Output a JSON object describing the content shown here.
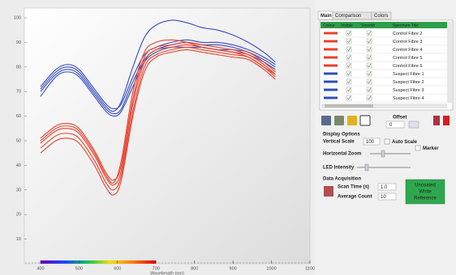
{
  "tabs": [
    "Main",
    "Comparison",
    "Colors"
  ],
  "plot": {
    "xlabel": "Wavelength (nm)",
    "xlim": [
      358,
      1100
    ],
    "ylim": [
      0,
      100
    ],
    "xticks": [
      400,
      500,
      600,
      700,
      800,
      900,
      1000,
      1100
    ],
    "yticks": [
      10,
      20,
      30,
      40,
      50,
      60,
      70,
      80,
      90,
      100
    ],
    "x": [
      400,
      440,
      470,
      500,
      540,
      570,
      590,
      610,
      640,
      670,
      700,
      740,
      780,
      820,
      860,
      900,
      940,
      980,
      1010
    ],
    "series": [
      {
        "color": "#3a4cc0",
        "values": [
          72,
          79,
          81,
          79,
          71,
          65,
          63,
          65,
          76,
          85,
          88,
          90,
          91,
          90,
          90,
          89,
          87,
          84,
          81
        ]
      },
      {
        "color": "#3a4cc0",
        "values": [
          70,
          77,
          79,
          77,
          69,
          63,
          61,
          63,
          74,
          83,
          87,
          89,
          90,
          89,
          89,
          88,
          86,
          83,
          80
        ]
      },
      {
        "color": "#3a4cc0",
        "values": [
          68,
          76,
          78,
          76,
          68,
          62,
          60,
          62,
          72,
          82,
          86,
          88,
          88,
          88,
          87,
          87,
          85,
          82,
          79
        ]
      },
      {
        "color": "#3a4cc0",
        "values": [
          71,
          78,
          80,
          78,
          70,
          64,
          62,
          66,
          80,
          92,
          97,
          99,
          98,
          96,
          95,
          93,
          90,
          86,
          82
        ]
      },
      {
        "color": "#e8412c",
        "values": [
          51,
          56,
          57,
          55,
          46,
          37,
          34,
          40,
          67,
          84,
          88,
          89,
          90,
          89,
          88,
          87,
          86,
          82,
          78
        ]
      },
      {
        "color": "#e8412c",
        "values": [
          49,
          54,
          55,
          53,
          44,
          35,
          32,
          38,
          65,
          82,
          87,
          88,
          89,
          88,
          87,
          86,
          85,
          81,
          77
        ]
      },
      {
        "color": "#e8412c",
        "values": [
          47,
          52,
          53,
          51,
          42,
          33,
          30,
          36,
          62,
          80,
          85,
          87,
          88,
          87,
          86,
          85,
          84,
          80,
          76
        ]
      },
      {
        "color": "#e8412c",
        "values": [
          45,
          50,
          51,
          49,
          40,
          31,
          28,
          34,
          60,
          78,
          84,
          86,
          87,
          86,
          85,
          84,
          83,
          79,
          75
        ]
      },
      {
        "color": "#e8412c",
        "values": [
          50,
          55,
          56,
          54,
          45,
          36,
          33,
          42,
          70,
          86,
          90,
          91,
          90,
          88,
          87,
          86,
          84,
          80,
          77
        ]
      }
    ]
  },
  "spectra_table": {
    "columns": [
      "Colour",
      "Visible",
      "Smooth",
      "Spectrum Title"
    ],
    "rows": [
      {
        "color": "#e8412c",
        "title": "Control Fibre 2"
      },
      {
        "color": "#e8412c",
        "title": "Control Fibre 3"
      },
      {
        "color": "#e8412c",
        "title": "Control Fibre 4"
      },
      {
        "color": "#e8412c",
        "title": "Control Fibre 5"
      },
      {
        "color": "#e8412c",
        "title": "Control Fibre 6"
      },
      {
        "color": "#2f4fb5",
        "title": "Suspect Fibre 1"
      },
      {
        "color": "#2f4fb5",
        "title": "Suspect Fibre 2"
      },
      {
        "color": "#2f4fb5",
        "title": "Suspect Fibre 3"
      },
      {
        "color": "#2f4fb5",
        "title": "Suspect Fibre 4"
      }
    ]
  },
  "offset": {
    "label": "Offset",
    "value": "0"
  },
  "display_options": {
    "heading": "Display Options",
    "vertical_scale_label": "Vertical Scale",
    "vertical_scale_value": "100",
    "auto_scale": "Auto Scale",
    "marker": "Marker",
    "horizontal_zoom": "Horizontal Zoom",
    "led_intensity": "LED Intensity"
  },
  "data_acquisition": {
    "heading": "Data Acquisition",
    "scan_time_label": "Scan Time (s)",
    "scan_time_value": "1.0",
    "average_count_label": "Average Count",
    "average_count_value": "10",
    "button": [
      "Uncoated",
      "White",
      "Reference"
    ]
  }
}
